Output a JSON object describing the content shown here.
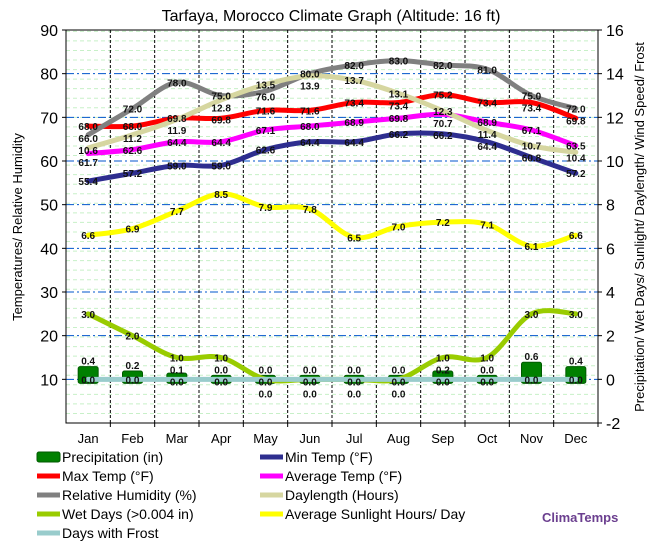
{
  "chart_data": {
    "type": "line",
    "title": "Tarfaya, Morocco Climate Graph (Altitude: 16 ft)",
    "ylabel_left": "Temperatures/ Relative Humidity",
    "ylabel_right": "Precipitation/ Wet Days/ Sunlight/ Daylength/ Wind Speed/ Frost",
    "ylim_left": [
      0,
      90
    ],
    "yticks_left": [
      10,
      20,
      30,
      40,
      50,
      60,
      70,
      80,
      90
    ],
    "ylim_right": [
      -2,
      16
    ],
    "yticks_right": [
      -2,
      0,
      2,
      4,
      6,
      8,
      10,
      12,
      14,
      16
    ],
    "grid": true,
    "legend_position": "bottom",
    "categories": [
      "Jan",
      "Feb",
      "Mar",
      "Apr",
      "May",
      "Jun",
      "Jul",
      "Aug",
      "Sep",
      "Oct",
      "Nov",
      "Dec"
    ],
    "series": [
      {
        "name": "Precipitation (in)",
        "axis": "right",
        "kind": "bar",
        "color": "#008000",
        "values": [
          0.4,
          0.2,
          0.1,
          0.0,
          0.0,
          0.0,
          0.0,
          0.0,
          0.2,
          0.0,
          0.6,
          0.4
        ]
      },
      {
        "name": "Min Temp (°F)",
        "axis": "left",
        "color": "#2e2e8f",
        "values": [
          55.4,
          57.2,
          59.0,
          59.0,
          62.6,
          64.4,
          64.4,
          66.2,
          66.2,
          64.4,
          60.8,
          57.2
        ]
      },
      {
        "name": "Max Temp (°F)",
        "axis": "left",
        "color": "#ff0000",
        "values": [
          68.0,
          68.0,
          69.8,
          69.8,
          71.6,
          71.6,
          73.4,
          73.4,
          75.2,
          73.4,
          73.4,
          69.8
        ]
      },
      {
        "name": "Average Temp (°F)",
        "axis": "left",
        "color": "#ff00ff",
        "values": [
          61.7,
          62.6,
          64.4,
          64.4,
          67.1,
          68.0,
          68.9,
          69.8,
          70.7,
          68.9,
          67.1,
          63.5
        ]
      },
      {
        "name": "Relative Humidity (%)",
        "axis": "left",
        "color": "#808080",
        "values": [
          66.0,
          72.0,
          78.0,
          75.0,
          76.0,
          80.0,
          82.0,
          83.0,
          82.0,
          81.0,
          75.0,
          72.0
        ]
      },
      {
        "name": "Daylength (Hours)",
        "axis": "right",
        "color": "#d6d6a0",
        "values": [
          10.6,
          11.2,
          11.9,
          12.8,
          13.5,
          13.9,
          13.7,
          13.1,
          12.3,
          11.4,
          10.7,
          10.4
        ]
      },
      {
        "name": "Wet Days (>0.004 in)",
        "axis": "right",
        "color": "#99cc00",
        "values": [
          3.0,
          2.0,
          1.0,
          1.0,
          0.0,
          0.0,
          0.0,
          0.0,
          1.0,
          1.0,
          3.0,
          3.0
        ]
      },
      {
        "name": "Average Sunlight Hours/ Day",
        "axis": "right",
        "color": "#ffff00",
        "values": [
          6.6,
          6.9,
          7.7,
          8.5,
          7.9,
          7.8,
          6.5,
          7.0,
          7.2,
          7.1,
          6.1,
          6.6
        ]
      },
      {
        "name": "Days with Frost",
        "axis": "right",
        "color": "#99cccc",
        "values": [
          0.0,
          0.0,
          0.0,
          0.0,
          0.0,
          0.0,
          0.0,
          0.0,
          0.0,
          0.0,
          0.0,
          0.0
        ]
      }
    ]
  },
  "brand": "ClimaTemps",
  "brand_color": "#6b3f8f"
}
